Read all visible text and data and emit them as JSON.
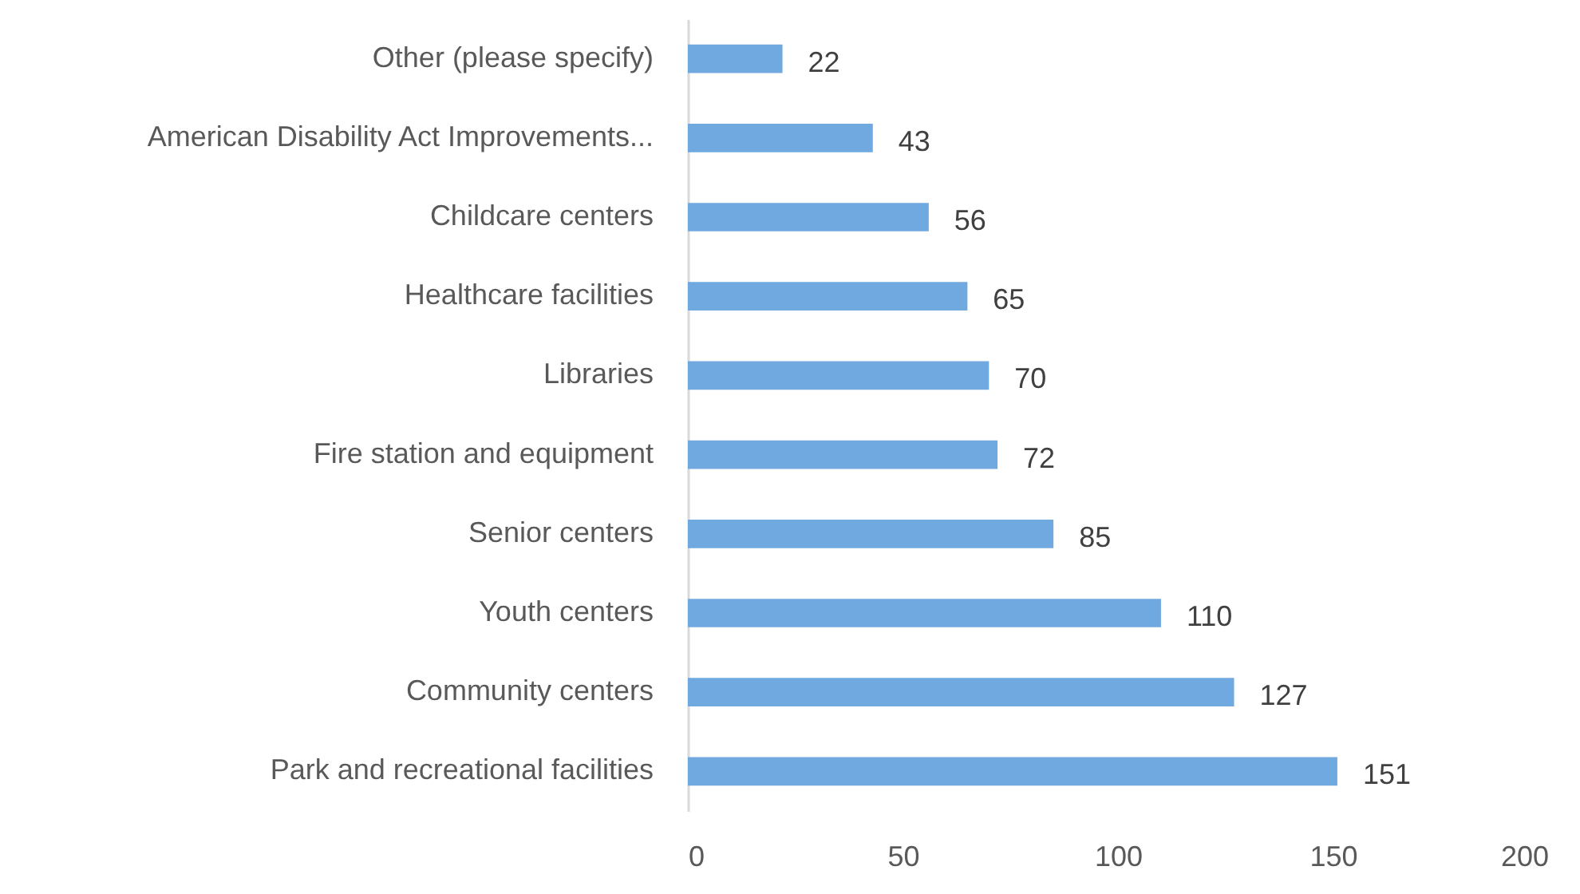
{
  "chart_data": {
    "type": "bar",
    "orientation": "horizontal",
    "categories": [
      "Other (please specify)",
      "American Disability Act Improvements...",
      "Childcare centers",
      "Healthcare facilities",
      "Libraries",
      "Fire station and equipment",
      "Senior centers",
      "Youth centers",
      "Community centers",
      "Park and recreational facilities"
    ],
    "values": [
      22,
      43,
      56,
      65,
      70,
      72,
      85,
      110,
      127,
      151
    ],
    "color": "#70a8e0",
    "xlim": [
      0,
      200
    ],
    "xticks": [
      0,
      50,
      100,
      150,
      200
    ],
    "data_labels": true,
    "grid": false
  }
}
